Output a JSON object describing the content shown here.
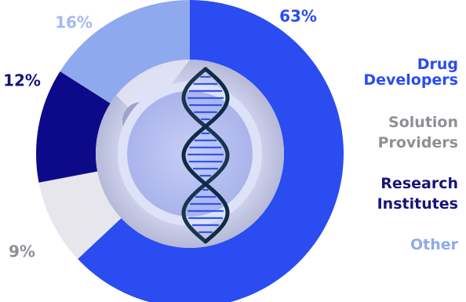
{
  "chart_data": {
    "type": "pie",
    "style": "donut",
    "categories": [
      "Drug Developers",
      "Solution Providers",
      "Research Institutes",
      "Other"
    ],
    "values": [
      63,
      9,
      12,
      16
    ],
    "value_labels": [
      "63%",
      "9%",
      "12%",
      "16%"
    ],
    "legend": [
      {
        "lines": [
          "Drug",
          "Developers"
        ],
        "color": "#2a4cf0"
      },
      {
        "lines": [
          "Solution",
          "Providers"
        ],
        "color": "#8f8f96"
      },
      {
        "lines": [
          "Research",
          "Institutes"
        ],
        "color": "#16147a"
      },
      {
        "lines": [
          "Other"
        ],
        "color": "#8fa9ee"
      }
    ],
    "colors": [
      "#2a4cf0",
      "#e6e6ec",
      "#0d0a8a",
      "#8fa9ee"
    ],
    "label_colors": [
      "#2a4cf0",
      "#8f8f96",
      "#16147a",
      "#a7b8ef"
    ],
    "legend_placement": "right",
    "title": "",
    "center_icon": "dna-helix-icon"
  }
}
